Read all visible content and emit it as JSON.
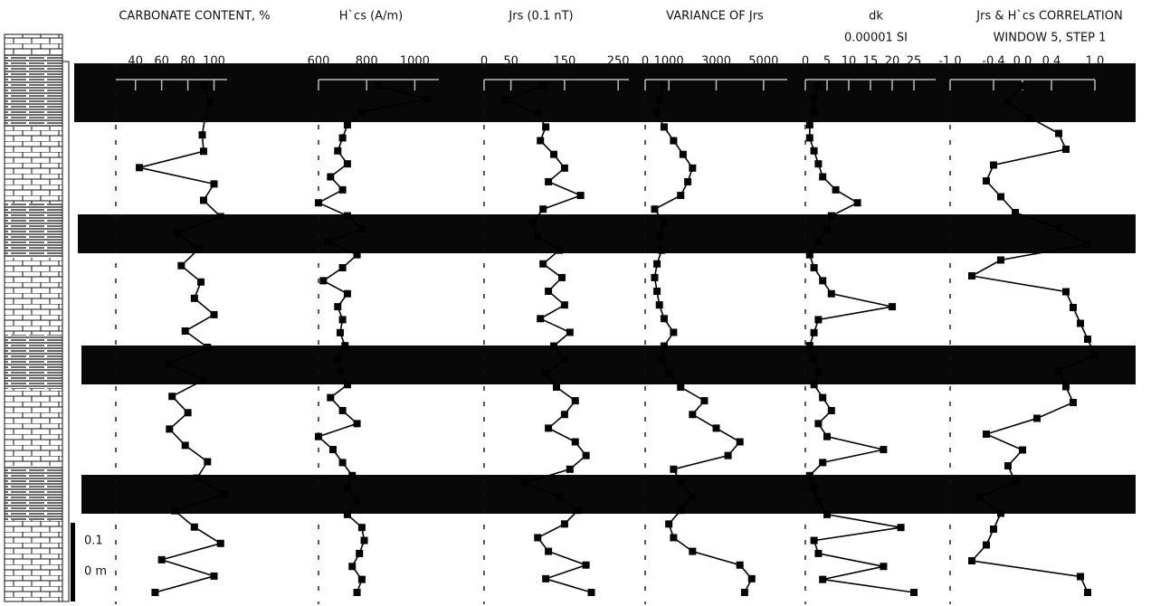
{
  "chart_data": [
    {
      "type": "line",
      "orientation": "vertical",
      "title": "CARBONATE CONTENT, %",
      "xlim": [
        25,
        110
      ],
      "xticks": [
        40,
        60,
        80,
        100
      ],
      "series": [
        {
          "color": "#000000",
          "values": [
            92,
            97,
            93,
            91,
            92,
            43,
            100,
            92,
            105,
            72,
            88,
            75,
            90,
            85,
            100,
            78,
            95,
            65,
            92,
            68,
            80,
            66,
            78,
            95,
            87,
            108,
            70,
            85,
            105,
            60,
            100,
            55
          ]
        }
      ]
    },
    {
      "type": "line",
      "orientation": "vertical",
      "title": "H`cs (A/m)",
      "xlim": [
        600,
        1100
      ],
      "xticks": [
        600,
        800,
        1000
      ],
      "series": [
        {
          "color": "#000000",
          "values": [
            850,
            1050,
            780,
            720,
            700,
            680,
            720,
            650,
            700,
            600,
            720,
            780,
            640,
            760,
            700,
            620,
            720,
            680,
            700,
            690,
            710,
            680,
            690,
            720,
            650,
            700,
            760,
            600,
            660,
            700,
            740,
            720,
            760,
            720,
            780,
            790,
            770,
            740,
            780,
            760
          ]
        }
      ]
    },
    {
      "type": "line",
      "orientation": "vertical",
      "title": "Jrs (0.1 nT)",
      "xlim": [
        0,
        270
      ],
      "xticks": [
        0,
        50,
        150,
        250
      ],
      "series": [
        {
          "color": "#000000",
          "values": [
            110,
            40,
            100,
            115,
            105,
            130,
            150,
            120,
            180,
            110,
            90,
            100,
            140,
            110,
            145,
            120,
            150,
            105,
            160,
            130,
            150,
            115,
            135,
            170,
            150,
            120,
            170,
            190,
            160,
            75,
            140,
            175,
            150,
            100,
            120,
            190,
            115,
            200
          ]
        }
      ]
    },
    {
      "type": "line",
      "orientation": "vertical",
      "title": "VARIANCE OF Jrs",
      "xlim": [
        0,
        6000
      ],
      "xticks": [
        0,
        1000,
        3000,
        5000
      ],
      "series": [
        {
          "color": "#000000",
          "values": [
            800,
            600,
            500,
            800,
            1200,
            1600,
            2000,
            1800,
            1500,
            400,
            800,
            600,
            700,
            500,
            400,
            500,
            600,
            800,
            1200,
            800,
            700,
            1000,
            1500,
            2500,
            2000,
            3000,
            4000,
            3500,
            1200,
            1500,
            2000,
            1500,
            1000,
            1200,
            2000,
            4000,
            4500,
            4200
          ]
        }
      ]
    },
    {
      "type": "line",
      "orientation": "vertical",
      "title": "dk",
      "subtitle": "0.00001 SI",
      "xlim": [
        0,
        30
      ],
      "xticks": [
        0,
        5,
        10,
        15,
        20,
        25
      ],
      "series": [
        {
          "color": "#000000",
          "values": [
            3,
            2,
            2,
            1,
            1,
            2,
            3,
            4,
            7,
            12,
            6,
            5,
            3,
            1,
            2,
            4,
            6,
            20,
            3,
            2,
            1,
            2,
            3,
            2,
            4,
            6,
            3,
            5,
            18,
            4,
            1,
            2,
            3,
            5,
            22,
            2,
            3,
            18,
            4,
            25
          ]
        }
      ]
    },
    {
      "type": "line",
      "orientation": "vertical",
      "title": "Jrs & H`cs  CORRELATION",
      "subtitle": "WINDOW 5, STEP 1",
      "xlim": [
        -1,
        1
      ],
      "xticks": [
        {
          "value": -1,
          "label": "-1.0"
        },
        {
          "value": -0.4,
          "label": "-0.4"
        },
        {
          "value": 0,
          "label": "0.0"
        },
        0.4,
        {
          "value": 1,
          "label": "1.0"
        }
      ],
      "series": [
        {
          "color": "#000000",
          "values": [
            0.0,
            -0.2,
            0.1,
            0.5,
            0.6,
            -0.4,
            -0.5,
            -0.3,
            -0.1,
            0.5,
            0.9,
            -0.3,
            -0.7,
            0.6,
            0.7,
            0.8,
            0.9,
            1.0,
            0.5,
            0.6,
            0.7,
            0.2,
            -0.5,
            0.0,
            -0.2,
            -0.1,
            -0.6,
            -0.3,
            -0.4,
            -0.5,
            -0.7,
            0.8,
            0.9
          ]
        }
      ]
    }
  ],
  "scale_bar": {
    "labels": [
      "0.1",
      "0 m"
    ]
  }
}
